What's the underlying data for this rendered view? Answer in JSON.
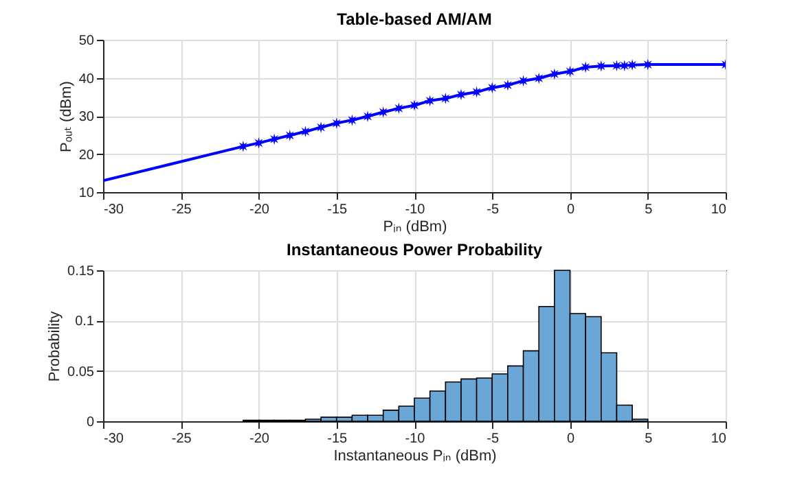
{
  "chart_data": [
    {
      "type": "line",
      "title": "Table-based AM/AM",
      "xlabel": "Pᵢₙ (dBm)",
      "ylabel": "Pₒᵤₜ (dBm)",
      "xlim": [
        -30,
        10
      ],
      "ylim": [
        10,
        50
      ],
      "xticks": [
        -30,
        -25,
        -20,
        -15,
        -10,
        -5,
        0,
        5,
        10
      ],
      "yticks": [
        10,
        20,
        30,
        40,
        50
      ],
      "grid": true,
      "marker": "star",
      "series": [
        {
          "color": "#0000ff",
          "marker": "none",
          "x": [
            -30,
            -21
          ],
          "values": [
            13.0,
            22.0
          ]
        },
        {
          "color": "#0000ff",
          "x": [
            -21,
            -20,
            -19,
            -18,
            -17,
            -16,
            -15,
            -14,
            -13,
            -12,
            -11,
            -10,
            -9,
            -8,
            -7,
            -6,
            -5,
            -4,
            -3,
            -2,
            -1,
            0,
            1,
            2,
            3,
            3.5,
            4,
            5,
            10
          ],
          "values": [
            22.0,
            22.9,
            23.9,
            24.9,
            25.9,
            27.0,
            28.1,
            28.9,
            29.9,
            31.0,
            32.0,
            32.8,
            34.0,
            34.6,
            35.6,
            36.3,
            37.4,
            38.1,
            39.2,
            39.9,
            41.0,
            41.7,
            42.8,
            43.1,
            43.2,
            43.2,
            43.4,
            43.5,
            43.5
          ]
        }
      ]
    },
    {
      "type": "histogram",
      "title": "Instantaneous Power Probability",
      "xlabel": "Instantaneous Pᵢₙ (dBm)",
      "ylabel": "Probability",
      "xlim": [
        -30,
        10
      ],
      "ylim": [
        0,
        0.15
      ],
      "xticks": [
        -30,
        -25,
        -20,
        -15,
        -10,
        -5,
        0,
        5,
        10
      ],
      "yticks": [
        0,
        0.05,
        0.1,
        0.15
      ],
      "grid": true,
      "color": "#6aa6d6",
      "bins": [
        -21,
        -20,
        -19,
        -18,
        -17,
        -16,
        -15,
        -14,
        -13,
        -12,
        -11,
        -10,
        -9,
        -8,
        -7,
        -6,
        -5,
        -4,
        -3,
        -2,
        -1,
        0,
        1,
        2,
        3,
        4,
        5
      ],
      "values": [
        0.001,
        0.001,
        0.001,
        0.001,
        0.002,
        0.004,
        0.004,
        0.006,
        0.006,
        0.011,
        0.015,
        0.023,
        0.03,
        0.039,
        0.042,
        0.043,
        0.047,
        0.055,
        0.07,
        0.114,
        0.15,
        0.107,
        0.104,
        0.068,
        0.016,
        0.002
      ]
    }
  ]
}
